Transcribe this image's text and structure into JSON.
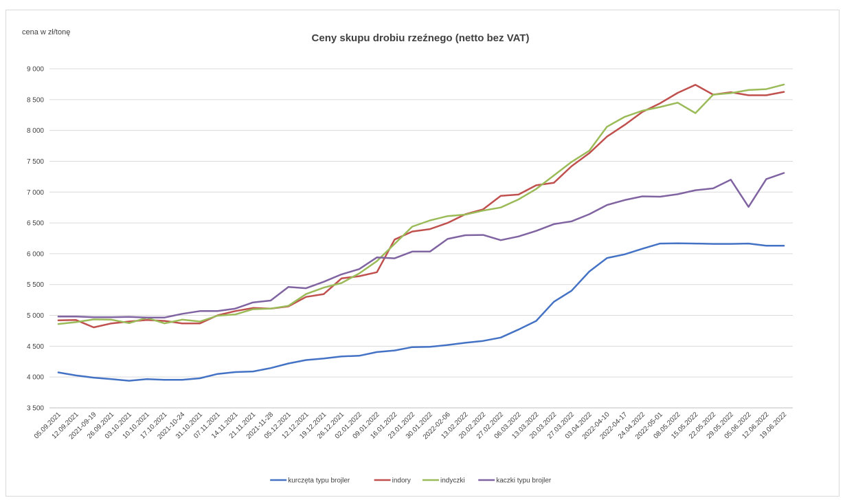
{
  "chart_data": {
    "type": "line",
    "title": "Ceny skupu drobiu rzeźnego (netto bez VAT)",
    "ylabel": "cena w zł/tonę",
    "xlabel": "",
    "ylim": [
      3500,
      9000
    ],
    "y_ticks": [
      "3 500",
      "4 000",
      "4 500",
      "5 000",
      "5 500",
      "6 000",
      "6 500",
      "7 000",
      "7 500",
      "8 000",
      "8 500",
      "9 000"
    ],
    "y_tick_values": [
      3500,
      4000,
      4500,
      5000,
      5500,
      6000,
      6500,
      7000,
      7500,
      8000,
      8500,
      9000
    ],
    "grid": true,
    "legend_position": "bottom",
    "categories": [
      "05.09.2021",
      "12.09.2021",
      "2021-09-19",
      "26.09.2021",
      "03.10.2021",
      "10.10.2021",
      "17.10.2021",
      "2021-10-24",
      "31.10.2021",
      "07.11.2021",
      "14.11.2021",
      "21.11.2021",
      "2021-11-28",
      "05.12.2021",
      "12.12.2021",
      "19.12.2021",
      "26.12.2021",
      "02.01.2022",
      "09.01.2022",
      "16.01.2022",
      "23.01.2022",
      "30.01.2022",
      "2022-02-06",
      "13.02.2022",
      "20.02.2022",
      "27.02.2022",
      "06.03.2022",
      "13.03.2022",
      "20.03.2022",
      "27.03.2022",
      "03.04.2022",
      "2022-04-10",
      "2022-04-17",
      "24.04.2022",
      "2022-05-01",
      "08.05.2022",
      "15.05.2022",
      "22.05.2022",
      "29.05.2022",
      "05.06.2022",
      "12.06.2022",
      "19.06.2022"
    ],
    "series": [
      {
        "name": "kurczęta typu brojler",
        "color": "#4472c4",
        "values": [
          4075,
          4025,
          3990,
          3965,
          3940,
          3965,
          3955,
          3955,
          3980,
          4050,
          4080,
          4090,
          4145,
          4220,
          4275,
          4300,
          4335,
          4345,
          4405,
          4430,
          4485,
          4490,
          4520,
          4555,
          4585,
          4640,
          4770,
          4910,
          5220,
          5400,
          5710,
          5930,
          5990,
          6080,
          6165,
          6170,
          6165,
          6160,
          6160,
          6165,
          6130,
          6130
        ]
      },
      {
        "name": "indory",
        "color": "#c0504d",
        "values": [
          4920,
          4925,
          4805,
          4870,
          4900,
          4925,
          4910,
          4870,
          4870,
          5000,
          5070,
          5120,
          5110,
          5145,
          5300,
          5345,
          5600,
          5635,
          5700,
          6230,
          6360,
          6400,
          6500,
          6640,
          6720,
          6940,
          6960,
          7110,
          7150,
          7420,
          7630,
          7900,
          8090,
          8300,
          8440,
          8610,
          8740,
          8580,
          8620,
          8570,
          8570,
          8625
        ]
      },
      {
        "name": "indyczki",
        "color": "#9bbb59",
        "values": [
          4860,
          4890,
          4935,
          4930,
          4875,
          4960,
          4870,
          4930,
          4900,
          4995,
          5015,
          5100,
          5110,
          5155,
          5345,
          5450,
          5525,
          5680,
          5880,
          6160,
          6440,
          6540,
          6610,
          6635,
          6700,
          6750,
          6880,
          7050,
          7270,
          7490,
          7670,
          8060,
          8220,
          8320,
          8380,
          8450,
          8280,
          8580,
          8605,
          8655,
          8670,
          8745
        ]
      },
      {
        "name": "kaczki typu brojler",
        "color": "#8064a2",
        "values": [
          4980,
          4980,
          4970,
          4970,
          4975,
          4965,
          4965,
          5025,
          5070,
          5070,
          5110,
          5210,
          5240,
          5460,
          5440,
          5545,
          5665,
          5750,
          5940,
          5925,
          6035,
          6035,
          6240,
          6300,
          6305,
          6220,
          6280,
          6370,
          6480,
          6525,
          6640,
          6790,
          6870,
          6930,
          6925,
          6965,
          7030,
          7060,
          7200,
          6760,
          7210,
          7310
        ]
      }
    ]
  }
}
